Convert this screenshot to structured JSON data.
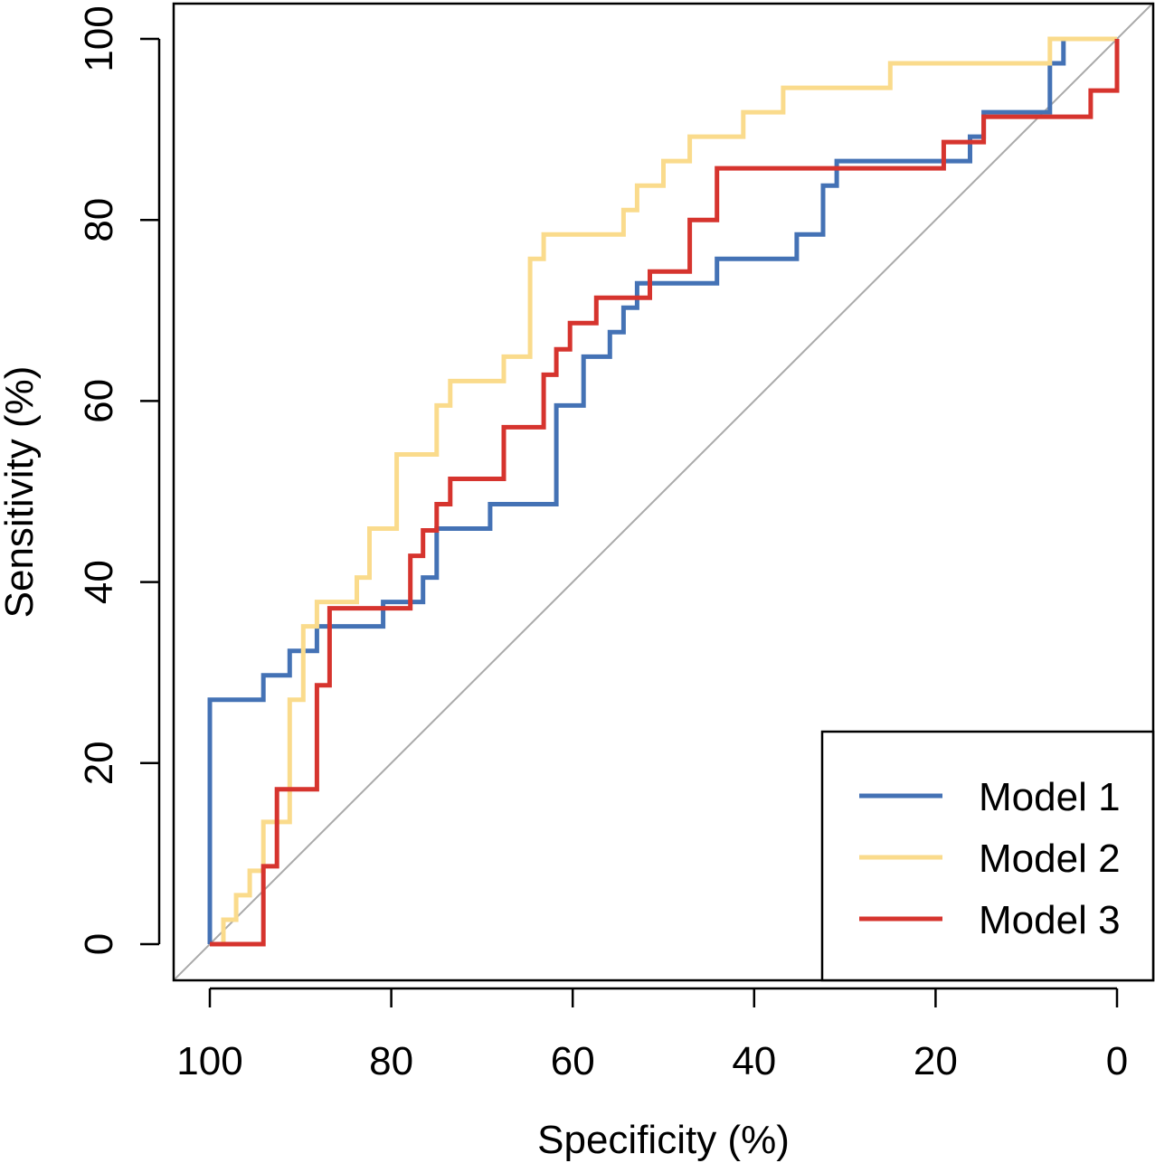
{
  "chart_data": {
    "type": "line",
    "xlabel": "Specificity (%)",
    "ylabel": "Sensitivity (%)",
    "xlim": [
      100,
      0
    ],
    "ylim": [
      0,
      100
    ],
    "x_ticks": [
      "100",
      "80",
      "60",
      "40",
      "20",
      "0"
    ],
    "y_ticks": [
      "0",
      "20",
      "40",
      "60",
      "80",
      "100"
    ],
    "reference_line": {
      "from": [
        100,
        0
      ],
      "to": [
        0,
        100
      ],
      "color": "#AAAAAA"
    },
    "legend_position": "bottom-right",
    "grid": false,
    "series": [
      {
        "name": "Model 1",
        "color": "#4472B5",
        "points": [
          [
            100,
            0
          ],
          [
            100,
            27
          ],
          [
            94.1,
            27
          ],
          [
            94.1,
            29.7
          ],
          [
            91.2,
            29.7
          ],
          [
            91.2,
            32.4
          ],
          [
            88.2,
            32.4
          ],
          [
            88.2,
            35.1
          ],
          [
            80.9,
            35.1
          ],
          [
            80.9,
            37.8
          ],
          [
            76.5,
            37.8
          ],
          [
            76.5,
            40.5
          ],
          [
            75,
            40.5
          ],
          [
            75,
            45.9
          ],
          [
            69.1,
            45.9
          ],
          [
            69.1,
            48.6
          ],
          [
            61.8,
            48.6
          ],
          [
            61.8,
            59.5
          ],
          [
            58.8,
            59.5
          ],
          [
            58.8,
            64.9
          ],
          [
            55.9,
            64.9
          ],
          [
            55.9,
            67.6
          ],
          [
            54.4,
            67.6
          ],
          [
            54.4,
            70.3
          ],
          [
            52.9,
            70.3
          ],
          [
            52.9,
            73
          ],
          [
            44.1,
            73
          ],
          [
            44.1,
            75.7
          ],
          [
            35.3,
            75.7
          ],
          [
            35.3,
            78.4
          ],
          [
            32.4,
            78.4
          ],
          [
            32.4,
            83.8
          ],
          [
            30.9,
            83.8
          ],
          [
            30.9,
            86.5
          ],
          [
            16.2,
            86.5
          ],
          [
            16.2,
            89.2
          ],
          [
            14.7,
            89.2
          ],
          [
            14.7,
            91.9
          ],
          [
            7.4,
            91.9
          ],
          [
            7.4,
            97.3
          ],
          [
            5.9,
            97.3
          ],
          [
            5.9,
            100
          ],
          [
            0,
            100
          ]
        ]
      },
      {
        "name": "Model 2",
        "color": "#FADB8C",
        "points": [
          [
            100,
            0
          ],
          [
            98.5,
            0
          ],
          [
            98.5,
            2.7
          ],
          [
            97.1,
            2.7
          ],
          [
            97.1,
            5.4
          ],
          [
            95.6,
            5.4
          ],
          [
            95.6,
            8.1
          ],
          [
            94.1,
            8.1
          ],
          [
            94.1,
            13.5
          ],
          [
            91.2,
            13.5
          ],
          [
            91.2,
            27
          ],
          [
            89.7,
            27
          ],
          [
            89.7,
            35.1
          ],
          [
            88.2,
            35.1
          ],
          [
            88.2,
            37.8
          ],
          [
            83.8,
            37.8
          ],
          [
            83.8,
            40.5
          ],
          [
            82.4,
            40.5
          ],
          [
            82.4,
            45.9
          ],
          [
            79.4,
            45.9
          ],
          [
            79.4,
            54.1
          ],
          [
            75,
            54.1
          ],
          [
            75,
            59.5
          ],
          [
            73.5,
            59.5
          ],
          [
            73.5,
            62.2
          ],
          [
            67.6,
            62.2
          ],
          [
            67.6,
            64.9
          ],
          [
            64.7,
            64.9
          ],
          [
            64.7,
            75.7
          ],
          [
            63.2,
            75.7
          ],
          [
            63.2,
            78.4
          ],
          [
            54.4,
            78.4
          ],
          [
            54.4,
            81.1
          ],
          [
            52.9,
            81.1
          ],
          [
            52.9,
            83.8
          ],
          [
            50,
            83.8
          ],
          [
            50,
            86.5
          ],
          [
            47.1,
            86.5
          ],
          [
            47.1,
            89.2
          ],
          [
            41.2,
            89.2
          ],
          [
            41.2,
            91.9
          ],
          [
            36.8,
            91.9
          ],
          [
            36.8,
            94.6
          ],
          [
            25,
            94.6
          ],
          [
            25,
            97.3
          ],
          [
            7.4,
            97.3
          ],
          [
            7.4,
            100
          ],
          [
            0,
            100
          ]
        ]
      },
      {
        "name": "Model 3",
        "color": "#D6342E",
        "points": [
          [
            100,
            0
          ],
          [
            94.1,
            0
          ],
          [
            94.1,
            8.6
          ],
          [
            92.6,
            8.6
          ],
          [
            92.6,
            17.1
          ],
          [
            88.2,
            17.1
          ],
          [
            88.2,
            28.6
          ],
          [
            86.8,
            28.6
          ],
          [
            86.8,
            37.1
          ],
          [
            77.9,
            37.1
          ],
          [
            77.9,
            42.9
          ],
          [
            76.5,
            42.9
          ],
          [
            76.5,
            45.7
          ],
          [
            75,
            45.7
          ],
          [
            75,
            48.6
          ],
          [
            73.5,
            48.6
          ],
          [
            73.5,
            51.4
          ],
          [
            67.6,
            51.4
          ],
          [
            67.6,
            57.1
          ],
          [
            63.2,
            57.1
          ],
          [
            63.2,
            62.9
          ],
          [
            61.8,
            62.9
          ],
          [
            61.8,
            65.7
          ],
          [
            60.3,
            65.7
          ],
          [
            60.3,
            68.6
          ],
          [
            57.4,
            68.6
          ],
          [
            57.4,
            71.4
          ],
          [
            51.5,
            71.4
          ],
          [
            51.5,
            74.3
          ],
          [
            47.1,
            74.3
          ],
          [
            47.1,
            80
          ],
          [
            44.1,
            80
          ],
          [
            44.1,
            85.7
          ],
          [
            19.1,
            85.7
          ],
          [
            19.1,
            88.6
          ],
          [
            14.7,
            88.6
          ],
          [
            14.7,
            91.4
          ],
          [
            2.9,
            91.4
          ],
          [
            2.9,
            94.3
          ],
          [
            0,
            94.3
          ],
          [
            0,
            100
          ]
        ]
      }
    ]
  }
}
